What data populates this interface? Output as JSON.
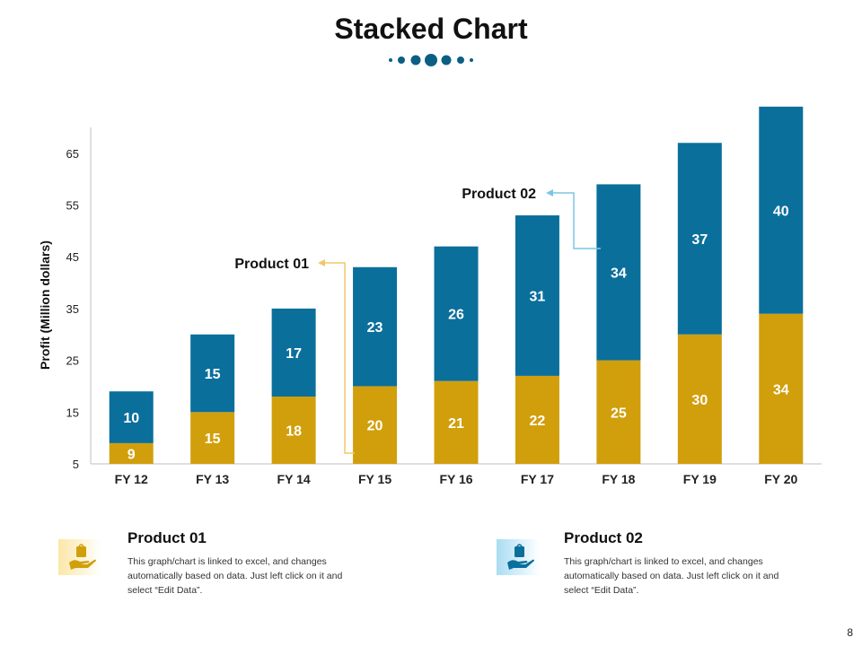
{
  "slide": {
    "title": "Stacked Chart",
    "page_number": "8"
  },
  "colors": {
    "product_01": "#D19F0C",
    "product_02": "#0B6F9C",
    "callout_01": "#F2C76B",
    "callout_02": "#7CC6E6",
    "dots": "#0B5F84"
  },
  "chart_data": {
    "type": "bar",
    "stacked": true,
    "categories": [
      "FY 12",
      "FY 13",
      "FY 14",
      "FY 15",
      "FY 16",
      "FY 17",
      "FY 18",
      "FY 19",
      "FY 20"
    ],
    "series": [
      {
        "name": "Product 01",
        "values": [
          9,
          15,
          18,
          20,
          21,
          22,
          25,
          30,
          34
        ]
      },
      {
        "name": "Product 02",
        "values": [
          10,
          15,
          17,
          23,
          26,
          31,
          34,
          37,
          40
        ]
      }
    ],
    "ylabel": "Profit  (Million dollars)",
    "yticks": [
      5,
      15,
      25,
      35,
      45,
      55,
      65
    ],
    "ylim": [
      5,
      70
    ],
    "annotations": [
      {
        "label": "Product 01",
        "target": "Product 01"
      },
      {
        "label": "Product 02",
        "target": "Product 02"
      }
    ]
  },
  "legend": [
    {
      "title": "Product 01",
      "description": "This graph/chart is linked to excel, and changes automatically based on data. Just left click on it and select “Edit Data”.",
      "icon": "hand-holding-bag-icon"
    },
    {
      "title": "Product 02",
      "description": "This graph/chart is linked to excel, and changes automatically based on data. Just left click on it and select “Edit Data”.",
      "icon": "hand-holding-bag-icon"
    }
  ]
}
